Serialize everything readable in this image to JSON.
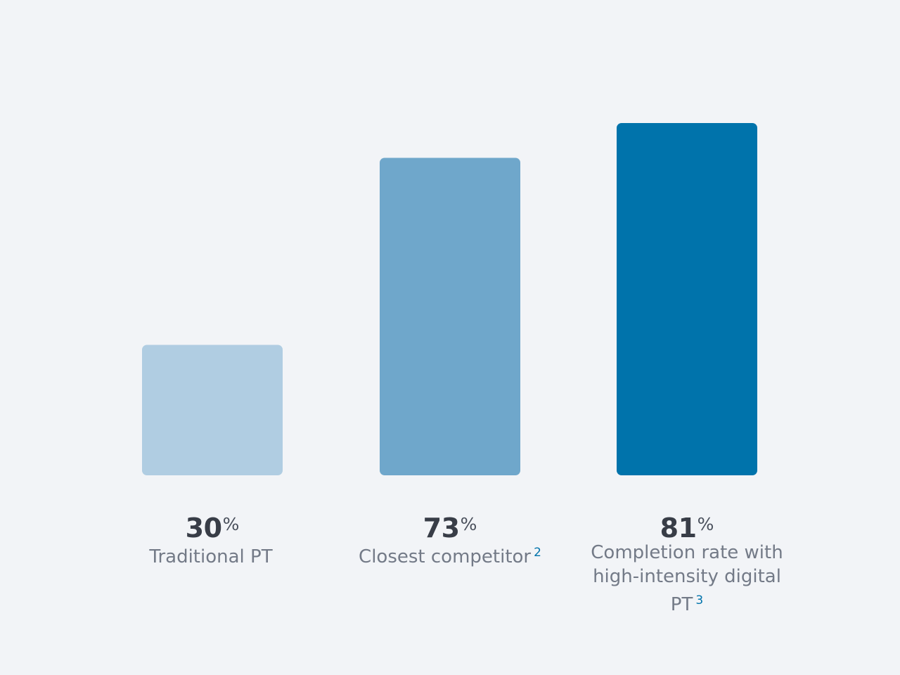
{
  "chart_data": {
    "type": "bar",
    "categories": [
      "Traditional PT",
      "Closest competitor",
      "Completion rate with high-intensity digital PT"
    ],
    "values": [
      30,
      73,
      81
    ],
    "unit": "%",
    "footnotes": [
      "",
      "2",
      "3"
    ],
    "title": "",
    "xlabel": "",
    "ylabel": "",
    "ylim": [
      0,
      81
    ],
    "grid": false,
    "colors": [
      "#b0cde2",
      "#6fa7cb",
      "#0073ab"
    ]
  }
}
